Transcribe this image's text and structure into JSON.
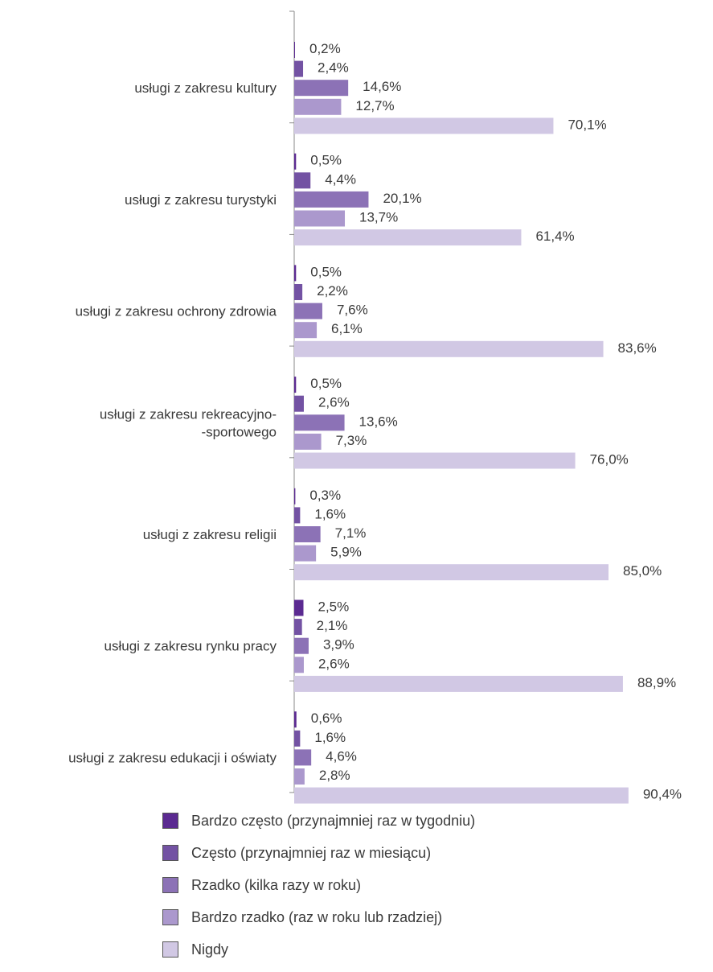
{
  "chart_data": {
    "type": "bar",
    "orientation": "horizontal",
    "categories": [
      [
        "usługi z zakresu kultury"
      ],
      [
        "usługi z zakresu turystyki"
      ],
      [
        "usługi z zakresu ochrony zdrowia"
      ],
      [
        "usługi z zakresu rekreacyjno-",
        "-sportowego"
      ],
      [
        "usługi z zakresu religii"
      ],
      [
        "usługi z zakresu rynku pracy"
      ],
      [
        "usługi z zakresu edukacji i oświaty"
      ]
    ],
    "series": [
      {
        "name": "Bardzo często (przynajmniej raz w tygodniu)",
        "color": "#5b2a91",
        "values": [
          0.2,
          0.5,
          0.5,
          0.5,
          0.3,
          2.5,
          0.6
        ],
        "labels": [
          "0,2%",
          "0,5%",
          "0,5%",
          "0,5%",
          "0,3%",
          "2,5%",
          "0,6%"
        ]
      },
      {
        "name": "Często (przynajmniej raz w miesiącu)",
        "color": "#7352a3",
        "values": [
          2.4,
          4.4,
          2.2,
          2.6,
          1.6,
          2.1,
          1.6
        ],
        "labels": [
          "2,4%",
          "4,4%",
          "2,2%",
          "2,6%",
          "1,6%",
          "2,1%",
          "1,6%"
        ]
      },
      {
        "name": "Rzadko (kilka razy w roku)",
        "color": "#8c72b6",
        "values": [
          14.6,
          20.1,
          7.6,
          13.6,
          7.1,
          3.9,
          4.6
        ],
        "labels": [
          "14,6%",
          "20,1%",
          "7,6%",
          "13,6%",
          "7,1%",
          "3,9%",
          "4,6%"
        ]
      },
      {
        "name": "Bardzo rzadko (raz w roku lub rzadziej)",
        "color": "#ab98cd",
        "values": [
          12.7,
          13.7,
          6.1,
          7.3,
          5.9,
          2.6,
          2.8
        ],
        "labels": [
          "12,7%",
          "13,7%",
          "6,1%",
          "7,3%",
          "5,9%",
          "2,6%",
          "2,8%"
        ]
      },
      {
        "name": "Nigdy",
        "color": "#d1c8e4",
        "values": [
          70.1,
          61.4,
          83.6,
          76.0,
          85.0,
          88.9,
          90.4
        ],
        "labels": [
          "70,1%",
          "61,4%",
          "83,6%",
          "76,0%",
          "85,0%",
          "88,9%",
          "90,4%"
        ]
      }
    ],
    "xlim": [
      0,
      100
    ],
    "legend_position": "bottom",
    "grid": false
  }
}
